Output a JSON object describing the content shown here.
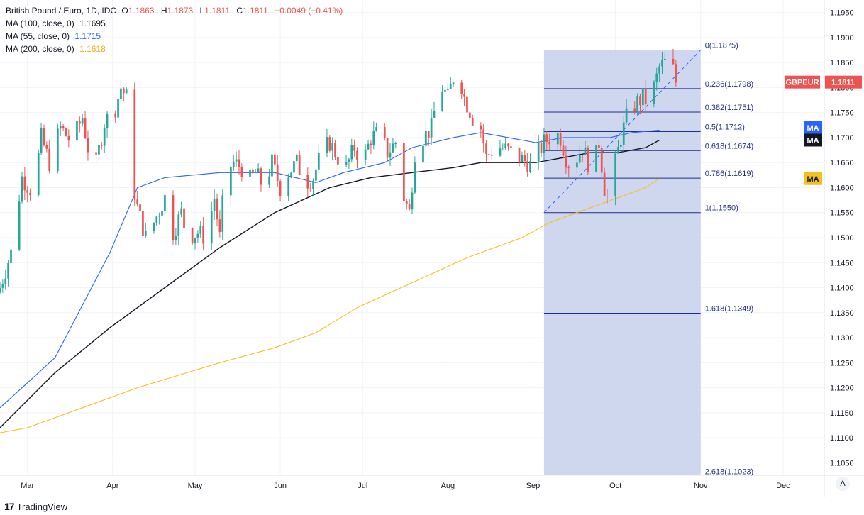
{
  "legend": {
    "symbol": "British Pound / Euro, 1D, IDC",
    "o_label": "O",
    "o": "1.1863",
    "h_label": "H",
    "h": "1.1873",
    "l_label": "L",
    "l": "1.1811",
    "c_label": "C",
    "c": "1.1811",
    "change": "−0.0049 (−0.41%)",
    "ma100_label": "MA (100, close, 0)",
    "ma100_value": "1.1695",
    "ma55_label": "MA (55, close, 0)",
    "ma55_value": "1.1715",
    "ma200_label": "MA (200, close, 0)",
    "ma200_value": "1.1618"
  },
  "branding": {
    "logo_text": "TradingView",
    "logo_mark": "17"
  },
  "auto_button": "A",
  "colors": {
    "up": "#26a69a",
    "down": "#ef5350",
    "ma55": "#2962ff",
    "ma100": "#131722",
    "ma200": "#f4c020",
    "fib_line": "#1e2f8a",
    "fib_fill": "#c9d3ec",
    "price_badge": "#ef5350"
  },
  "chart_data": {
    "type": "candlestick",
    "title": "British Pound / Euro, 1D, IDC",
    "y_range": [
      1.1025,
      1.1975
    ],
    "y_ticks": [
      "1.1950",
      "1.1900",
      "1.1850",
      "1.1800",
      "1.1750",
      "1.1700",
      "1.1650",
      "1.1600",
      "1.1550",
      "1.1500",
      "1.1450",
      "1.1400",
      "1.1350",
      "1.1300",
      "1.1250",
      "1.1200",
      "1.1150",
      "1.1100",
      "1.1050"
    ],
    "x_range_days": [
      0,
      300
    ],
    "x_ticks": [
      {
        "label": "Mar",
        "day": 10
      },
      {
        "label": "Apr",
        "day": 41
      },
      {
        "label": "May",
        "day": 71
      },
      {
        "label": "Jun",
        "day": 102
      },
      {
        "label": "Jul",
        "day": 132
      },
      {
        "label": "Aug",
        "day": 163
      },
      {
        "label": "Sep",
        "day": 194
      },
      {
        "label": "Oct",
        "day": 224
      },
      {
        "label": "Nov",
        "day": 255
      },
      {
        "label": "Dec",
        "day": 285
      }
    ],
    "closes": [
      [
        0,
        1.14
      ],
      [
        4,
        1.147
      ],
      [
        8,
        1.162
      ],
      [
        12,
        1.159
      ],
      [
        15,
        1.17
      ],
      [
        18,
        1.165
      ],
      [
        22,
        1.172
      ],
      [
        26,
        1.169
      ],
      [
        30,
        1.174
      ],
      [
        34,
        1.162
      ],
      [
        38,
        1.173
      ],
      [
        42,
        1.176
      ],
      [
        44,
        1.18
      ],
      [
        46,
        1.178
      ],
      [
        48,
        1.162
      ],
      [
        50,
        1.156
      ],
      [
        53,
        1.15
      ],
      [
        56,
        1.153
      ],
      [
        60,
        1.158
      ],
      [
        63,
        1.151
      ],
      [
        66,
        1.155
      ],
      [
        68,
        1.15
      ],
      [
        72,
        1.151
      ],
      [
        75,
        1.15
      ],
      [
        78,
        1.158
      ],
      [
        80,
        1.15
      ],
      [
        82,
        1.163
      ],
      [
        85,
        1.165
      ],
      [
        88,
        1.164
      ],
      [
        90,
        1.161
      ],
      [
        93,
        1.163
      ],
      [
        96,
        1.16
      ],
      [
        99,
        1.165
      ],
      [
        102,
        1.16
      ],
      [
        105,
        1.163
      ],
      [
        108,
        1.165
      ],
      [
        111,
        1.161
      ],
      [
        114,
        1.162
      ],
      [
        117,
        1.167
      ],
      [
        120,
        1.169
      ],
      [
        123,
        1.166
      ],
      [
        126,
        1.164
      ],
      [
        129,
        1.168
      ],
      [
        132,
        1.165
      ],
      [
        135,
        1.17
      ],
      [
        138,
        1.171
      ],
      [
        141,
        1.167
      ],
      [
        144,
        1.169
      ],
      [
        147,
        1.158
      ],
      [
        149,
        1.155
      ],
      [
        151,
        1.167
      ],
      [
        154,
        1.17
      ],
      [
        157,
        1.172
      ],
      [
        159,
        1.178
      ],
      [
        161,
        1.18
      ],
      [
        163,
        1.178
      ],
      [
        165,
        1.182
      ],
      [
        167,
        1.183
      ],
      [
        169,
        1.178
      ],
      [
        172,
        1.174
      ],
      [
        175,
        1.172
      ],
      [
        177,
        1.166
      ],
      [
        180,
        1.168
      ],
      [
        183,
        1.168
      ],
      [
        186,
        1.167
      ],
      [
        189,
        1.166
      ],
      [
        192,
        1.165
      ],
      [
        194,
        1.164
      ],
      [
        196,
        1.167
      ],
      [
        198,
        1.169
      ],
      [
        200,
        1.17
      ],
      [
        202,
        1.171
      ],
      [
        204,
        1.17
      ],
      [
        206,
        1.166
      ],
      [
        208,
        1.164
      ],
      [
        210,
        1.166
      ],
      [
        212,
        1.168
      ],
      [
        214,
        1.165
      ],
      [
        216,
        1.164
      ],
      [
        218,
        1.169
      ],
      [
        220,
        1.16
      ],
      [
        222,
        1.156
      ],
      [
        224,
        1.165
      ],
      [
        226,
        1.17
      ],
      [
        228,
        1.174
      ],
      [
        230,
        1.176
      ],
      [
        232,
        1.177
      ],
      [
        234,
        1.178
      ],
      [
        236,
        1.177
      ],
      [
        238,
        1.18
      ],
      [
        240,
        1.184
      ],
      [
        242,
        1.185
      ],
      [
        244,
        1.186
      ],
      [
        246,
        1.1811
      ]
    ],
    "series": [
      {
        "name": "MA (55, close, 0)",
        "last": 1.1715,
        "points": [
          [
            0,
            1.116
          ],
          [
            20,
            1.126
          ],
          [
            40,
            1.147
          ],
          [
            50,
            1.16
          ],
          [
            60,
            1.162
          ],
          [
            80,
            1.163
          ],
          [
            100,
            1.163
          ],
          [
            115,
            1.161
          ],
          [
            125,
            1.163
          ],
          [
            140,
            1.165
          ],
          [
            150,
            1.168
          ],
          [
            165,
            1.17
          ],
          [
            175,
            1.171
          ],
          [
            185,
            1.17
          ],
          [
            195,
            1.169
          ],
          [
            205,
            1.17
          ],
          [
            215,
            1.17
          ],
          [
            222,
            1.17
          ],
          [
            230,
            1.171
          ],
          [
            240,
            1.1715
          ]
        ]
      },
      {
        "name": "MA (100, close, 0)",
        "last": 1.1695,
        "points": [
          [
            0,
            1.112
          ],
          [
            20,
            1.123
          ],
          [
            40,
            1.132
          ],
          [
            50,
            1.136
          ],
          [
            60,
            1.14
          ],
          [
            80,
            1.148
          ],
          [
            100,
            1.155
          ],
          [
            120,
            1.16
          ],
          [
            135,
            1.162
          ],
          [
            150,
            1.163
          ],
          [
            165,
            1.164
          ],
          [
            175,
            1.165
          ],
          [
            185,
            1.165
          ],
          [
            195,
            1.165
          ],
          [
            205,
            1.166
          ],
          [
            215,
            1.167
          ],
          [
            225,
            1.167
          ],
          [
            235,
            1.168
          ],
          [
            240,
            1.1695
          ]
        ]
      },
      {
        "name": "MA (200, close, 0)",
        "last": 1.1618,
        "points": [
          [
            0,
            1.111
          ],
          [
            10,
            1.112
          ],
          [
            30,
            1.116
          ],
          [
            50,
            1.12
          ],
          [
            80,
            1.125
          ],
          [
            100,
            1.128
          ],
          [
            115,
            1.131
          ],
          [
            130,
            1.136
          ],
          [
            150,
            1.141
          ],
          [
            170,
            1.146
          ],
          [
            190,
            1.15
          ],
          [
            200,
            1.153
          ],
          [
            215,
            1.156
          ],
          [
            225,
            1.158
          ],
          [
            235,
            1.16
          ],
          [
            240,
            1.1618
          ]
        ]
      }
    ],
    "fibonacci": {
      "start_day": 198,
      "end_day": 255,
      "trend_line": [
        [
          198,
          1.155
        ],
        [
          255,
          1.1875
        ]
      ],
      "levels": [
        {
          "label": "0(1.1875)",
          "value": 1.1875
        },
        {
          "label": "0.236(1.1798)",
          "value": 1.1798
        },
        {
          "label": "0.382(1.1751)",
          "value": 1.1751
        },
        {
          "label": "0.5(1.1712)",
          "value": 1.1712
        },
        {
          "label": "0.618(1.1674)",
          "value": 1.1674
        },
        {
          "label": "0.786(1.1619)",
          "value": 1.1619
        },
        {
          "label": "1(1.1550)",
          "value": 1.155
        },
        {
          "label": "1.618(1.1349)",
          "value": 1.1349
        },
        {
          "label": "2.618(1.1023)",
          "value": 1.1023
        }
      ]
    },
    "price_labels": [
      {
        "name": "GBPEUR",
        "text": "GBPEUR",
        "value": "1.1811",
        "price": 1.1811
      },
      {
        "name": "ma55",
        "text": "MA",
        "price": 1.172
      },
      {
        "name": "ma100",
        "text": "MA",
        "price": 1.1695
      },
      {
        "name": "ma200",
        "text": "MA",
        "price": 1.1618
      }
    ]
  }
}
